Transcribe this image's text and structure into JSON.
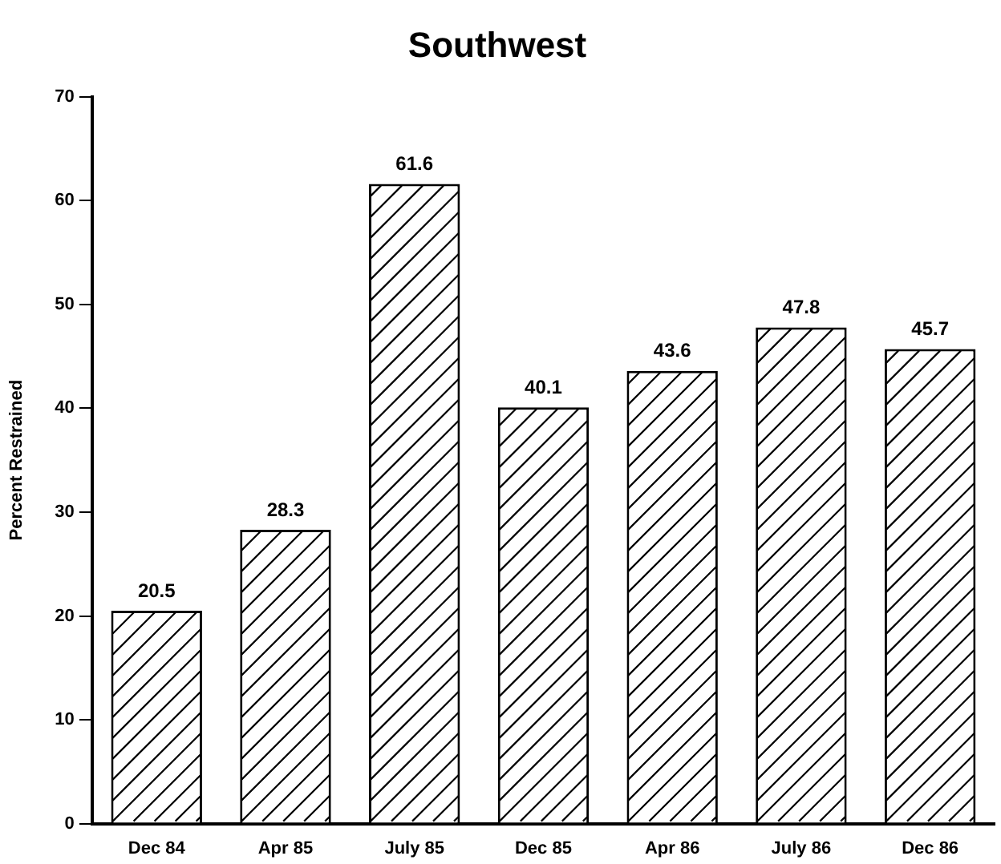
{
  "chart_data": {
    "type": "bar",
    "title": "Southwest",
    "ylabel": "Percent Restrained",
    "categories": [
      "Dec 84",
      "Apr 85",
      "July 85",
      "Dec 85",
      "Apr 86",
      "July 86",
      "Dec 86"
    ],
    "values": [
      20.5,
      28.3,
      61.6,
      40.1,
      43.6,
      47.8,
      45.7
    ],
    "color": "#ffffff",
    "ylim": [
      0,
      70
    ],
    "yticks": [
      0,
      10,
      20,
      30,
      40,
      50,
      60,
      70
    ],
    "grid": false,
    "legend": false,
    "data_labels": true
  }
}
